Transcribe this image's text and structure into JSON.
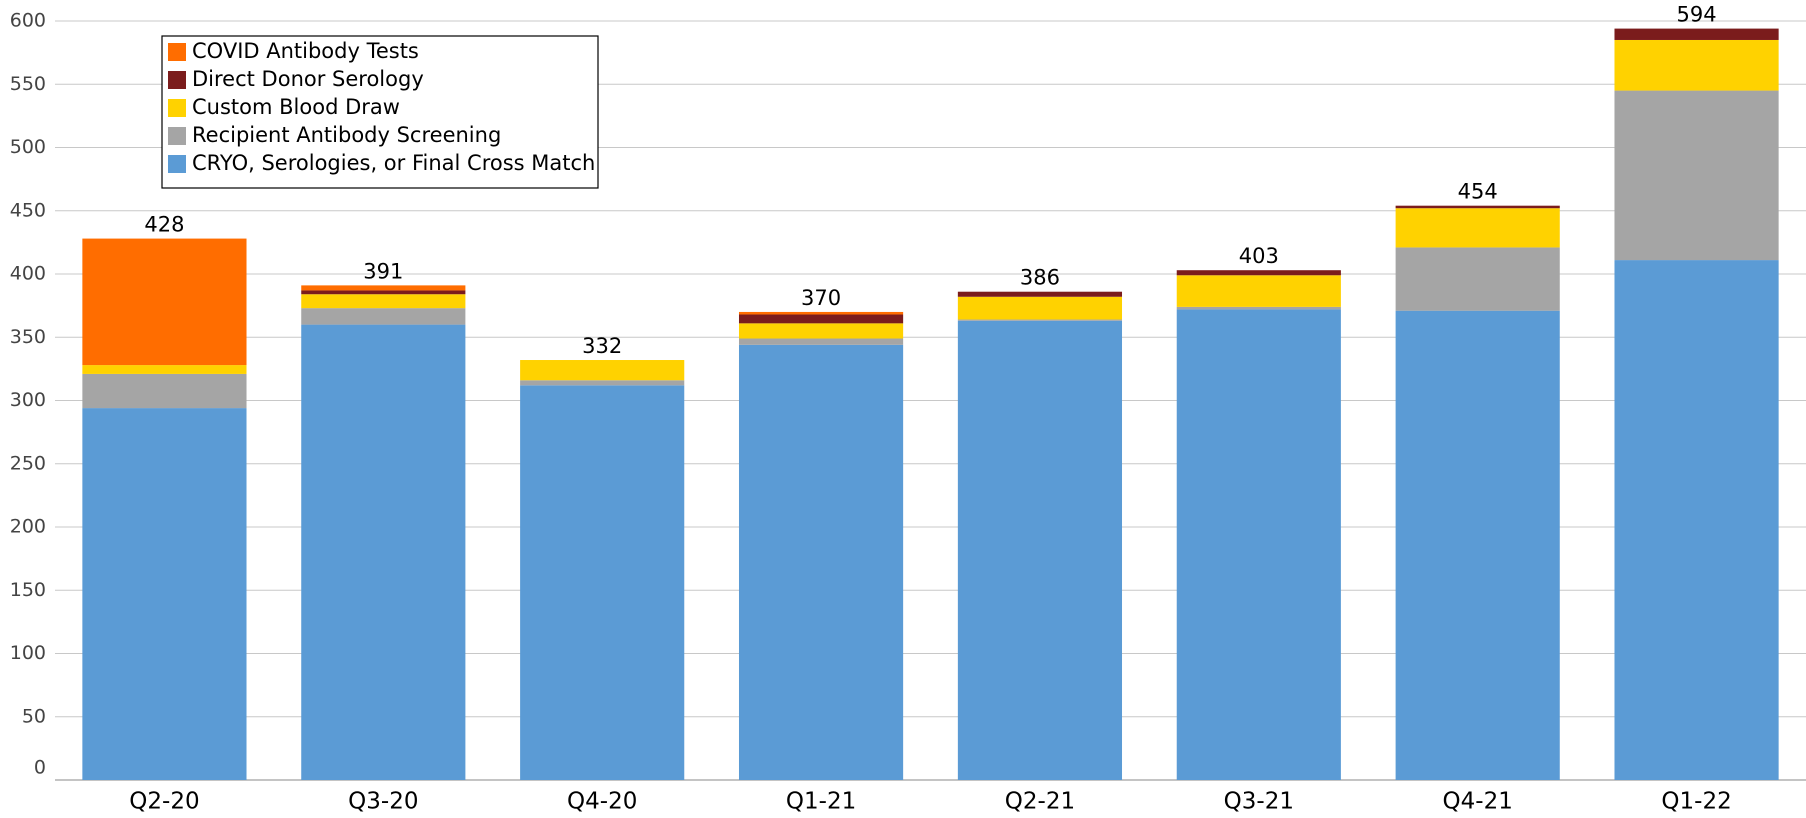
{
  "chart_data": {
    "type": "stacked_bar",
    "categories": [
      "Q2-20",
      "Q3-20",
      "Q4-20",
      "Q1-21",
      "Q2-21",
      "Q3-21",
      "Q4-21",
      "Q1-22"
    ],
    "series": [
      {
        "name": "CRYO, Serologies, or Final Cross Match",
        "color": "#5b9bd5",
        "values": [
          294,
          360,
          312,
          344,
          363,
          372,
          371,
          411
        ]
      },
      {
        "name": "Recipient Antibody Screening",
        "color": "#a5a5a5",
        "values": [
          27,
          13,
          4,
          5,
          1,
          2,
          50,
          134
        ]
      },
      {
        "name": "Custom Blood Draw",
        "color": "#ffd200",
        "values": [
          7,
          11,
          16,
          12,
          18,
          25,
          31,
          40
        ]
      },
      {
        "name": "Direct Donor Serology",
        "color": "#7b1c1c",
        "values": [
          0,
          3,
          0,
          7,
          4,
          4,
          2,
          9
        ]
      },
      {
        "name": "COVID Antibody Tests",
        "color": "#ff6d00",
        "values": [
          100,
          4,
          0,
          2,
          0,
          0,
          0,
          0
        ]
      }
    ],
    "totals": [
      428,
      391,
      332,
      370,
      386,
      403,
      454,
      594
    ],
    "ylim": [
      0,
      600
    ],
    "yticks": [
      0,
      50,
      100,
      150,
      200,
      250,
      300,
      350,
      400,
      450,
      500,
      550,
      600
    ],
    "grid": true,
    "legend": "upper left"
  }
}
